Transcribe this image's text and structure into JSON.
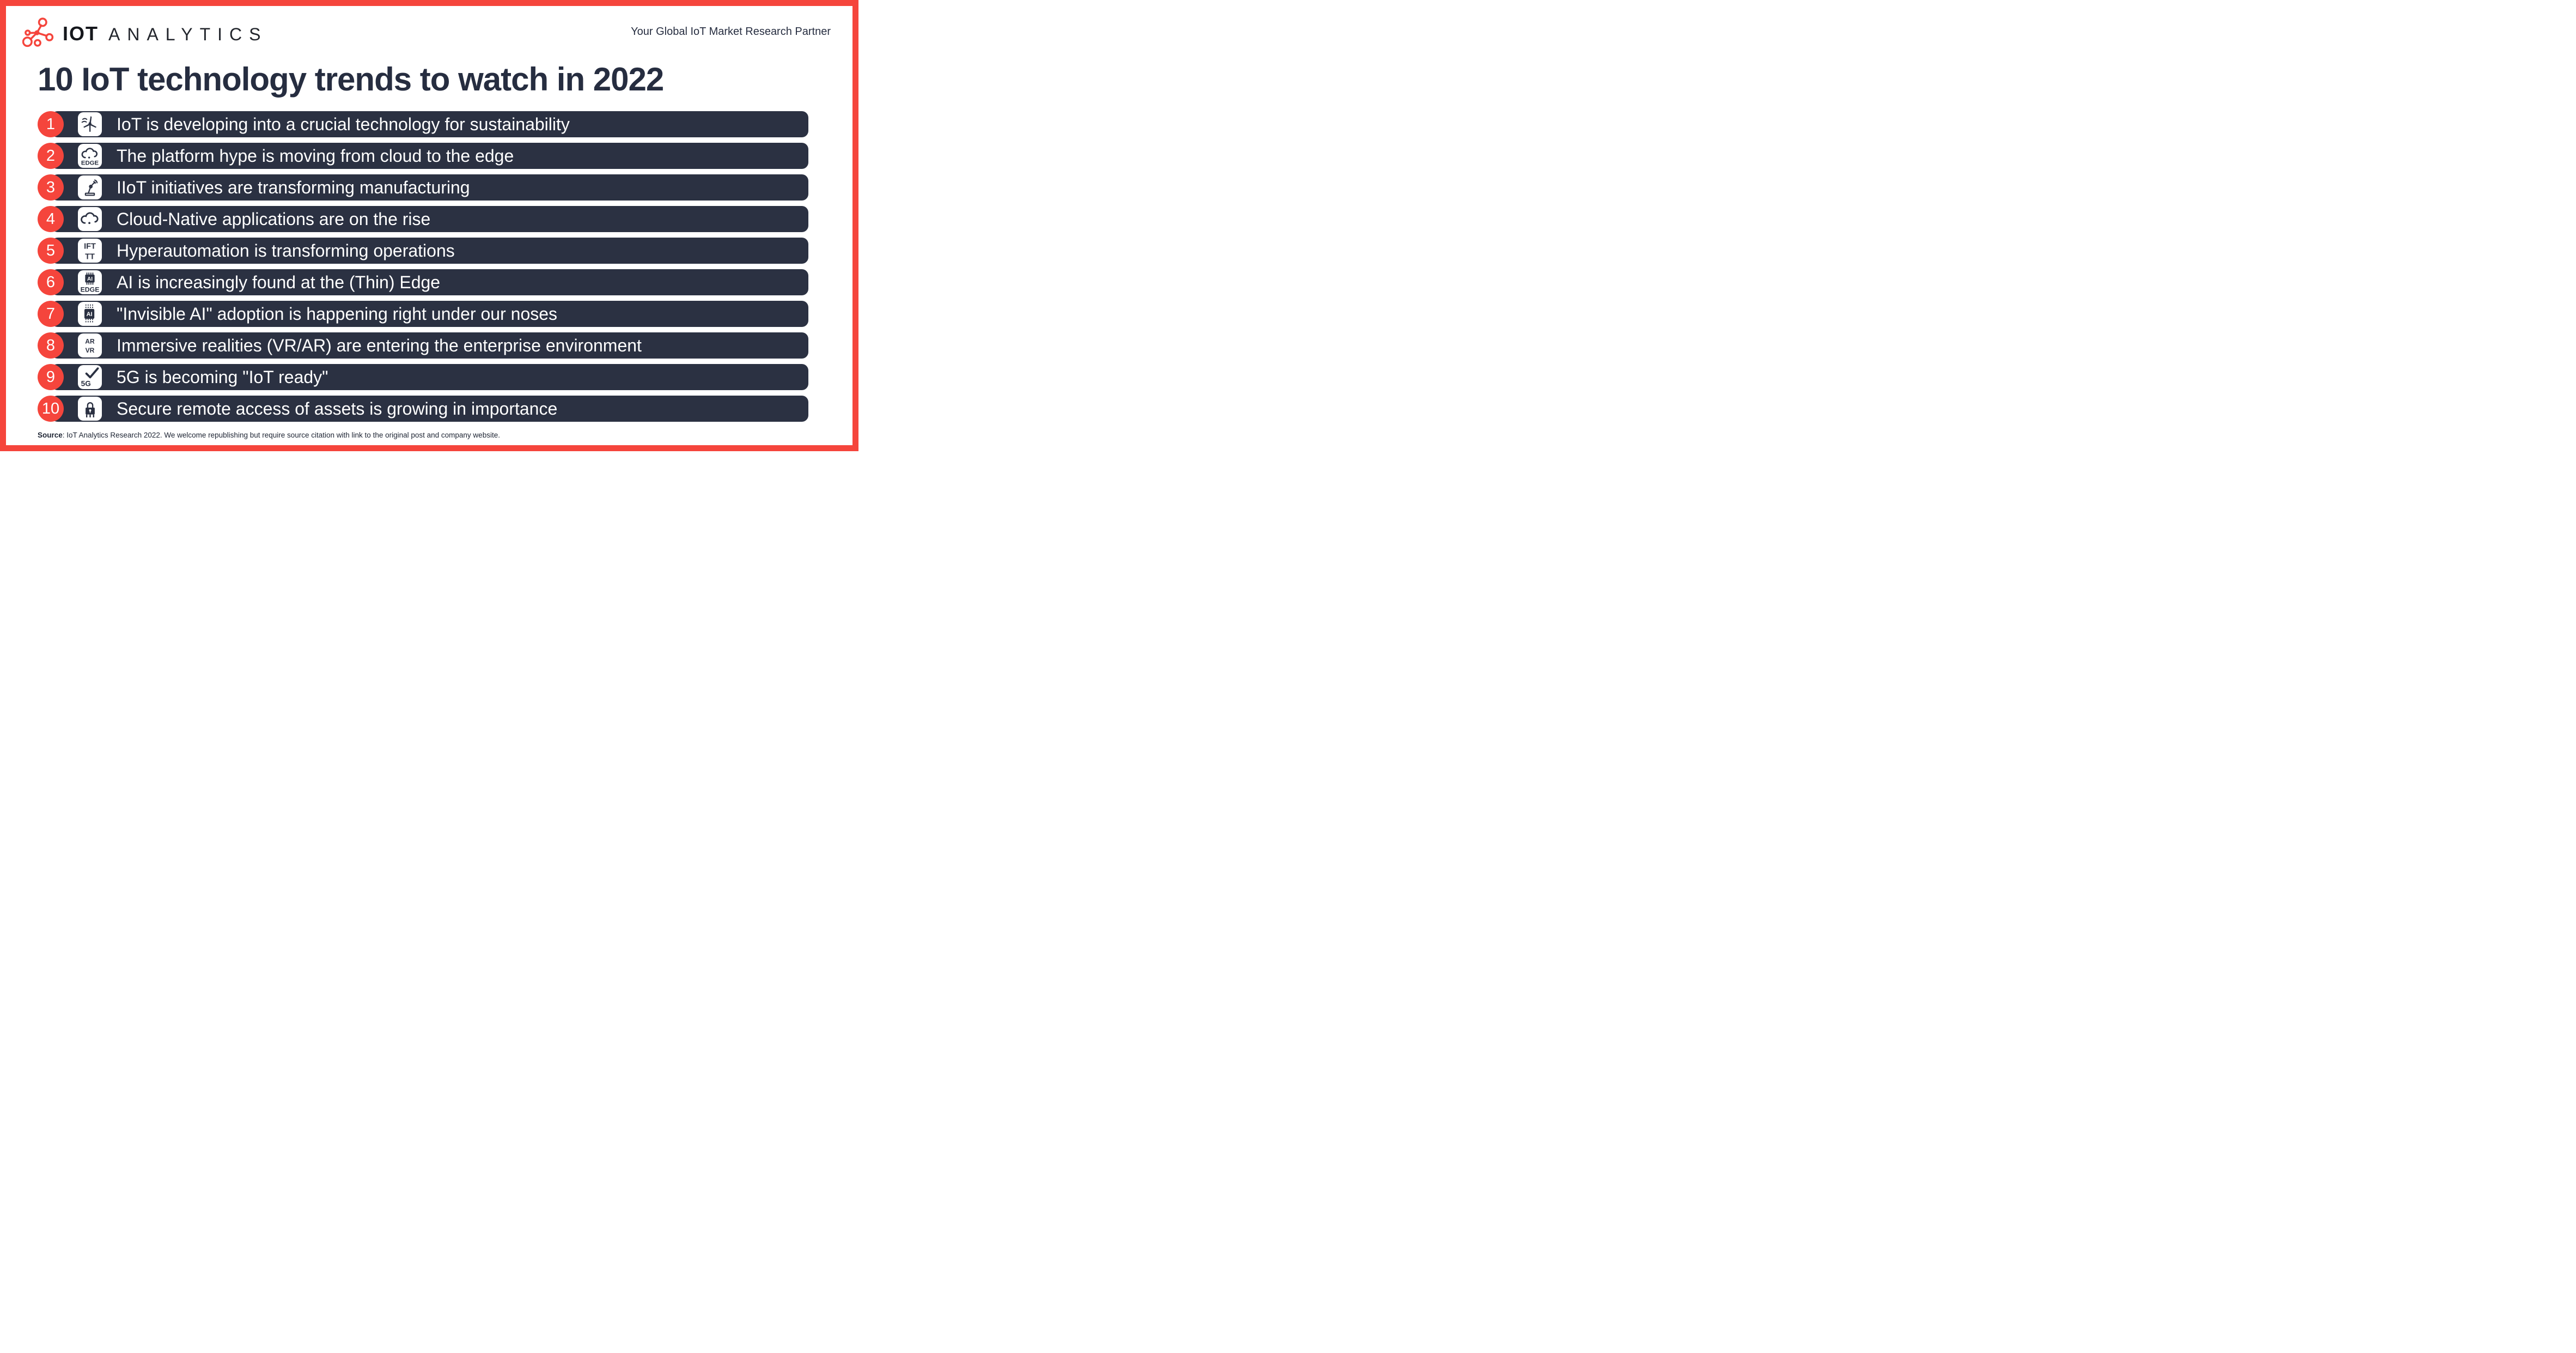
{
  "header": {
    "logo": {
      "icon": "iot-analytics-logo-icon",
      "text_primary": "IOT",
      "text_secondary": "ANALYTICS"
    },
    "tagline": "Your Global IoT Market Research Partner"
  },
  "title": "10 IoT technology trends to watch in 2022",
  "trends": [
    {
      "number": "1",
      "icon": "wind-turbine-icon",
      "icon_text": [],
      "label": "IoT is developing into a crucial technology for sustainability"
    },
    {
      "number": "2",
      "icon": "cloud-edge-icon",
      "icon_text": [
        "EDGE"
      ],
      "label": "The platform hype is moving from cloud to the edge"
    },
    {
      "number": "3",
      "icon": "robot-arm-icon",
      "icon_text": [],
      "label": "IIoT initiatives are transforming manufacturing"
    },
    {
      "number": "4",
      "icon": "cloud-icon",
      "icon_text": [],
      "label": "Cloud-Native applications are on the rise"
    },
    {
      "number": "5",
      "icon": "ifttt-icon",
      "icon_text": [
        "IFT",
        "TT"
      ],
      "label": "Hyperautomation is transforming operations"
    },
    {
      "number": "6",
      "icon": "ai-edge-chip-icon",
      "icon_text": [
        "AI",
        "EDGE"
      ],
      "label": "AI is increasingly found at the (Thin) Edge"
    },
    {
      "number": "7",
      "icon": "invisible-ai-chip-icon",
      "icon_text": [
        "AI"
      ],
      "label": "\"Invisible AI\" adoption is happening right under our noses"
    },
    {
      "number": "8",
      "icon": "ar-vr-icon",
      "icon_text": [
        "AR",
        "VR"
      ],
      "label": "Immersive realities (VR/AR) are entering the enterprise environment"
    },
    {
      "number": "9",
      "icon": "5g-check-icon",
      "icon_text": [
        "5G"
      ],
      "label": "5G is becoming \"IoT ready\""
    },
    {
      "number": "10",
      "icon": "secure-remote-lock-icon",
      "icon_text": [],
      "label": "Secure remote access of assets is growing in importance"
    }
  ],
  "footer": {
    "source_label": "Source",
    "source_text": ": IoT Analytics Research 2022. We welcome republishing but require source citation with link to the original post and company website."
  },
  "colors": {
    "accent_red": "#F5453C",
    "row_navy": "#2B3142",
    "text_dark": "#262D40",
    "row_text": "#FFFFFF",
    "background": "#FFFFFF"
  }
}
